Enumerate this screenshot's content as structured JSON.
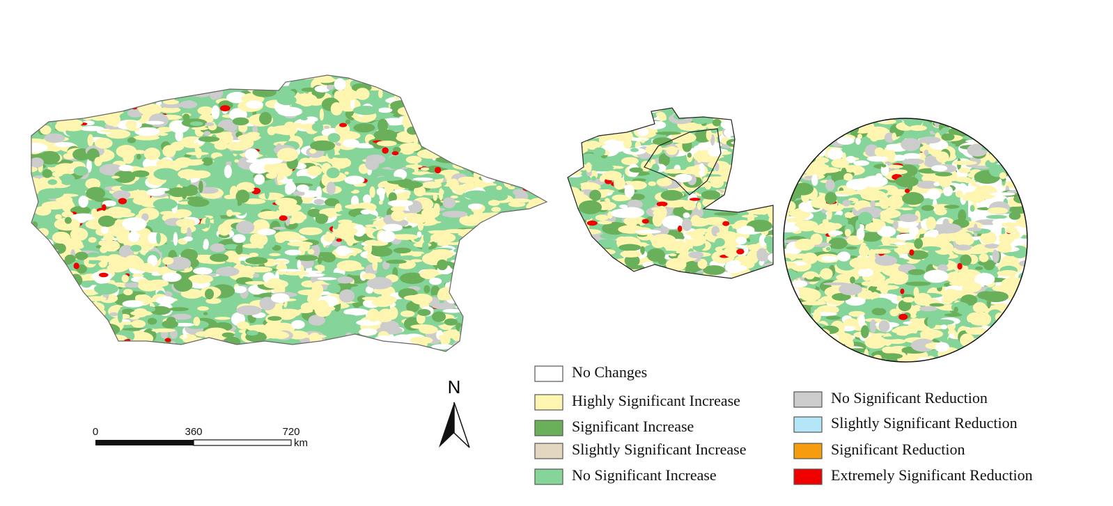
{
  "legend": {
    "items": [
      {
        "label": "No Changes",
        "color": "#ffffff"
      },
      {
        "label": "Highly Significant Increase",
        "color": "#fdf5b0"
      },
      {
        "label": "Significant Increase",
        "color": "#6ab05a"
      },
      {
        "label": "Slightly Significant Increase",
        "color": "#e3d7c2"
      },
      {
        "label": "No Significant Increase",
        "color": "#85d49a"
      },
      {
        "label": "No Significant Reduction",
        "color": "#cccccc"
      },
      {
        "label": "Slightly Significant Reduction",
        "color": "#b5e6f7"
      },
      {
        "label": "Significant Reduction",
        "color": "#f59d0e"
      },
      {
        "label": "Extremely Significant Reduction",
        "color": "#f20000"
      }
    ]
  },
  "scale_bar": {
    "labels": [
      "0",
      "360",
      "720"
    ],
    "unit": "km"
  },
  "north_arrow": {
    "label": "N"
  }
}
